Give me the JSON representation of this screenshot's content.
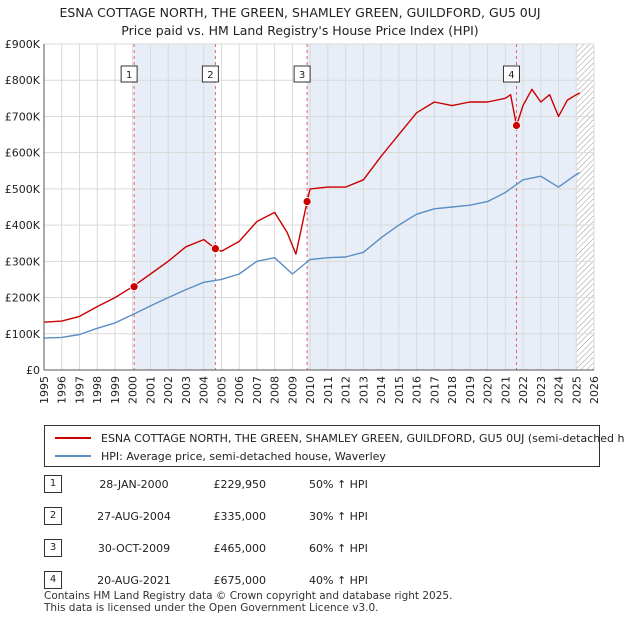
{
  "title": {
    "line1": "ESNA COTTAGE NORTH, THE GREEN, SHAMLEY GREEN, GUILDFORD, GU5 0UJ",
    "line2": "Price paid vs. HM Land Registry's House Price Index (HPI)"
  },
  "colors": {
    "property": "#cc0000",
    "hpi": "#5b8ec4",
    "shade": "#e8eef8",
    "grid": "#d9d9d9"
  },
  "chart_data": {
    "type": "line",
    "title": "Price paid vs. HM Land Registry's House Price Index (HPI)",
    "xlim": [
      1995,
      2026
    ],
    "ylim": [
      0,
      900000
    ],
    "x_ticks": [
      "1995",
      "1996",
      "1997",
      "1998",
      "1999",
      "2000",
      "2001",
      "2002",
      "2003",
      "2004",
      "2005",
      "2006",
      "2007",
      "2008",
      "2009",
      "2010",
      "2011",
      "2012",
      "2013",
      "2014",
      "2015",
      "2016",
      "2017",
      "2018",
      "2019",
      "2020",
      "2021",
      "2022",
      "2023",
      "2024",
      "2025",
      "2026"
    ],
    "y_ticks": [
      {
        "value": 0,
        "label": "£0"
      },
      {
        "value": 100000,
        "label": "£100K"
      },
      {
        "value": 200000,
        "label": "£200K"
      },
      {
        "value": 300000,
        "label": "£300K"
      },
      {
        "value": 400000,
        "label": "£400K"
      },
      {
        "value": 500000,
        "label": "£500K"
      },
      {
        "value": 600000,
        "label": "£600K"
      },
      {
        "value": 700000,
        "label": "£700K"
      },
      {
        "value": 800000,
        "label": "£800K"
      },
      {
        "value": 900000,
        "label": "£900K"
      }
    ],
    "forecast_from": 2025.0,
    "series": [
      {
        "name": "ESNA COTTAGE NORTH, THE GREEN, SHAMLEY GREEN, GUILDFORD, GU5 0UJ (semi-detached h",
        "color": "#cc0000",
        "points": [
          [
            1995,
            132000
          ],
          [
            1996,
            135000
          ],
          [
            1997,
            148000
          ],
          [
            1998,
            175000
          ],
          [
            1999,
            200000
          ],
          [
            2000,
            229950
          ],
          [
            2001,
            265000
          ],
          [
            2002,
            300000
          ],
          [
            2003,
            340000
          ],
          [
            2004,
            360000
          ],
          [
            2004.66,
            335000
          ],
          [
            2005,
            328000
          ],
          [
            2006,
            355000
          ],
          [
            2007,
            410000
          ],
          [
            2008,
            435000
          ],
          [
            2008.7,
            380000
          ],
          [
            2009.2,
            320000
          ],
          [
            2009.83,
            465000
          ],
          [
            2010,
            500000
          ],
          [
            2011,
            505000
          ],
          [
            2012,
            505000
          ],
          [
            2013,
            525000
          ],
          [
            2014,
            590000
          ],
          [
            2015,
            650000
          ],
          [
            2016,
            710000
          ],
          [
            2017,
            740000
          ],
          [
            2018,
            730000
          ],
          [
            2019,
            740000
          ],
          [
            2020,
            740000
          ],
          [
            2021,
            750000
          ],
          [
            2021.3,
            760000
          ],
          [
            2021.63,
            675000
          ],
          [
            2022,
            730000
          ],
          [
            2022.5,
            775000
          ],
          [
            2023,
            740000
          ],
          [
            2023.5,
            760000
          ],
          [
            2024,
            700000
          ],
          [
            2024.5,
            745000
          ],
          [
            2025,
            760000
          ],
          [
            2025.2,
            765000
          ]
        ]
      },
      {
        "name": "HPI: Average price, semi-detached house, Waverley",
        "color": "#5b8ec4",
        "points": [
          [
            1995,
            88000
          ],
          [
            1996,
            90000
          ],
          [
            1997,
            98000
          ],
          [
            1998,
            115000
          ],
          [
            1999,
            130000
          ],
          [
            2000,
            153000
          ],
          [
            2001,
            177000
          ],
          [
            2002,
            200000
          ],
          [
            2003,
            222000
          ],
          [
            2004,
            242000
          ],
          [
            2005,
            250000
          ],
          [
            2006,
            265000
          ],
          [
            2007,
            300000
          ],
          [
            2008,
            310000
          ],
          [
            2009,
            265000
          ],
          [
            2010,
            305000
          ],
          [
            2011,
            310000
          ],
          [
            2012,
            312000
          ],
          [
            2013,
            325000
          ],
          [
            2014,
            365000
          ],
          [
            2015,
            400000
          ],
          [
            2016,
            430000
          ],
          [
            2017,
            445000
          ],
          [
            2018,
            450000
          ],
          [
            2019,
            455000
          ],
          [
            2020,
            465000
          ],
          [
            2021,
            490000
          ],
          [
            2022,
            525000
          ],
          [
            2023,
            535000
          ],
          [
            2024,
            505000
          ],
          [
            2025,
            540000
          ],
          [
            2025.2,
            545000
          ]
        ]
      }
    ],
    "sales": [
      {
        "num": "1",
        "x": 2000.08,
        "price": 229950
      },
      {
        "num": "2",
        "x": 2004.66,
        "price": 335000
      },
      {
        "num": "3",
        "x": 2009.83,
        "price": 465000
      },
      {
        "num": "4",
        "x": 2021.63,
        "price": 675000
      }
    ]
  },
  "legend": {
    "property_label": "ESNA COTTAGE NORTH, THE GREEN, SHAMLEY GREEN, GUILDFORD, GU5 0UJ (semi-detached h",
    "hpi_label": "HPI: Average price, semi-detached house, Waverley"
  },
  "sales_table": [
    {
      "num": "1",
      "date": "28-JAN-2000",
      "price": "£229,950",
      "pct": "50% ↑ HPI"
    },
    {
      "num": "2",
      "date": "27-AUG-2004",
      "price": "£335,000",
      "pct": "30% ↑ HPI"
    },
    {
      "num": "3",
      "date": "30-OCT-2009",
      "price": "£465,000",
      "pct": "60% ↑ HPI"
    },
    {
      "num": "4",
      "date": "20-AUG-2021",
      "price": "£675,000",
      "pct": "40% ↑ HPI"
    }
  ],
  "footer": {
    "line1": "Contains HM Land Registry data © Crown copyright and database right 2025.",
    "line2": "This data is licensed under the Open Government Licence v3.0."
  }
}
